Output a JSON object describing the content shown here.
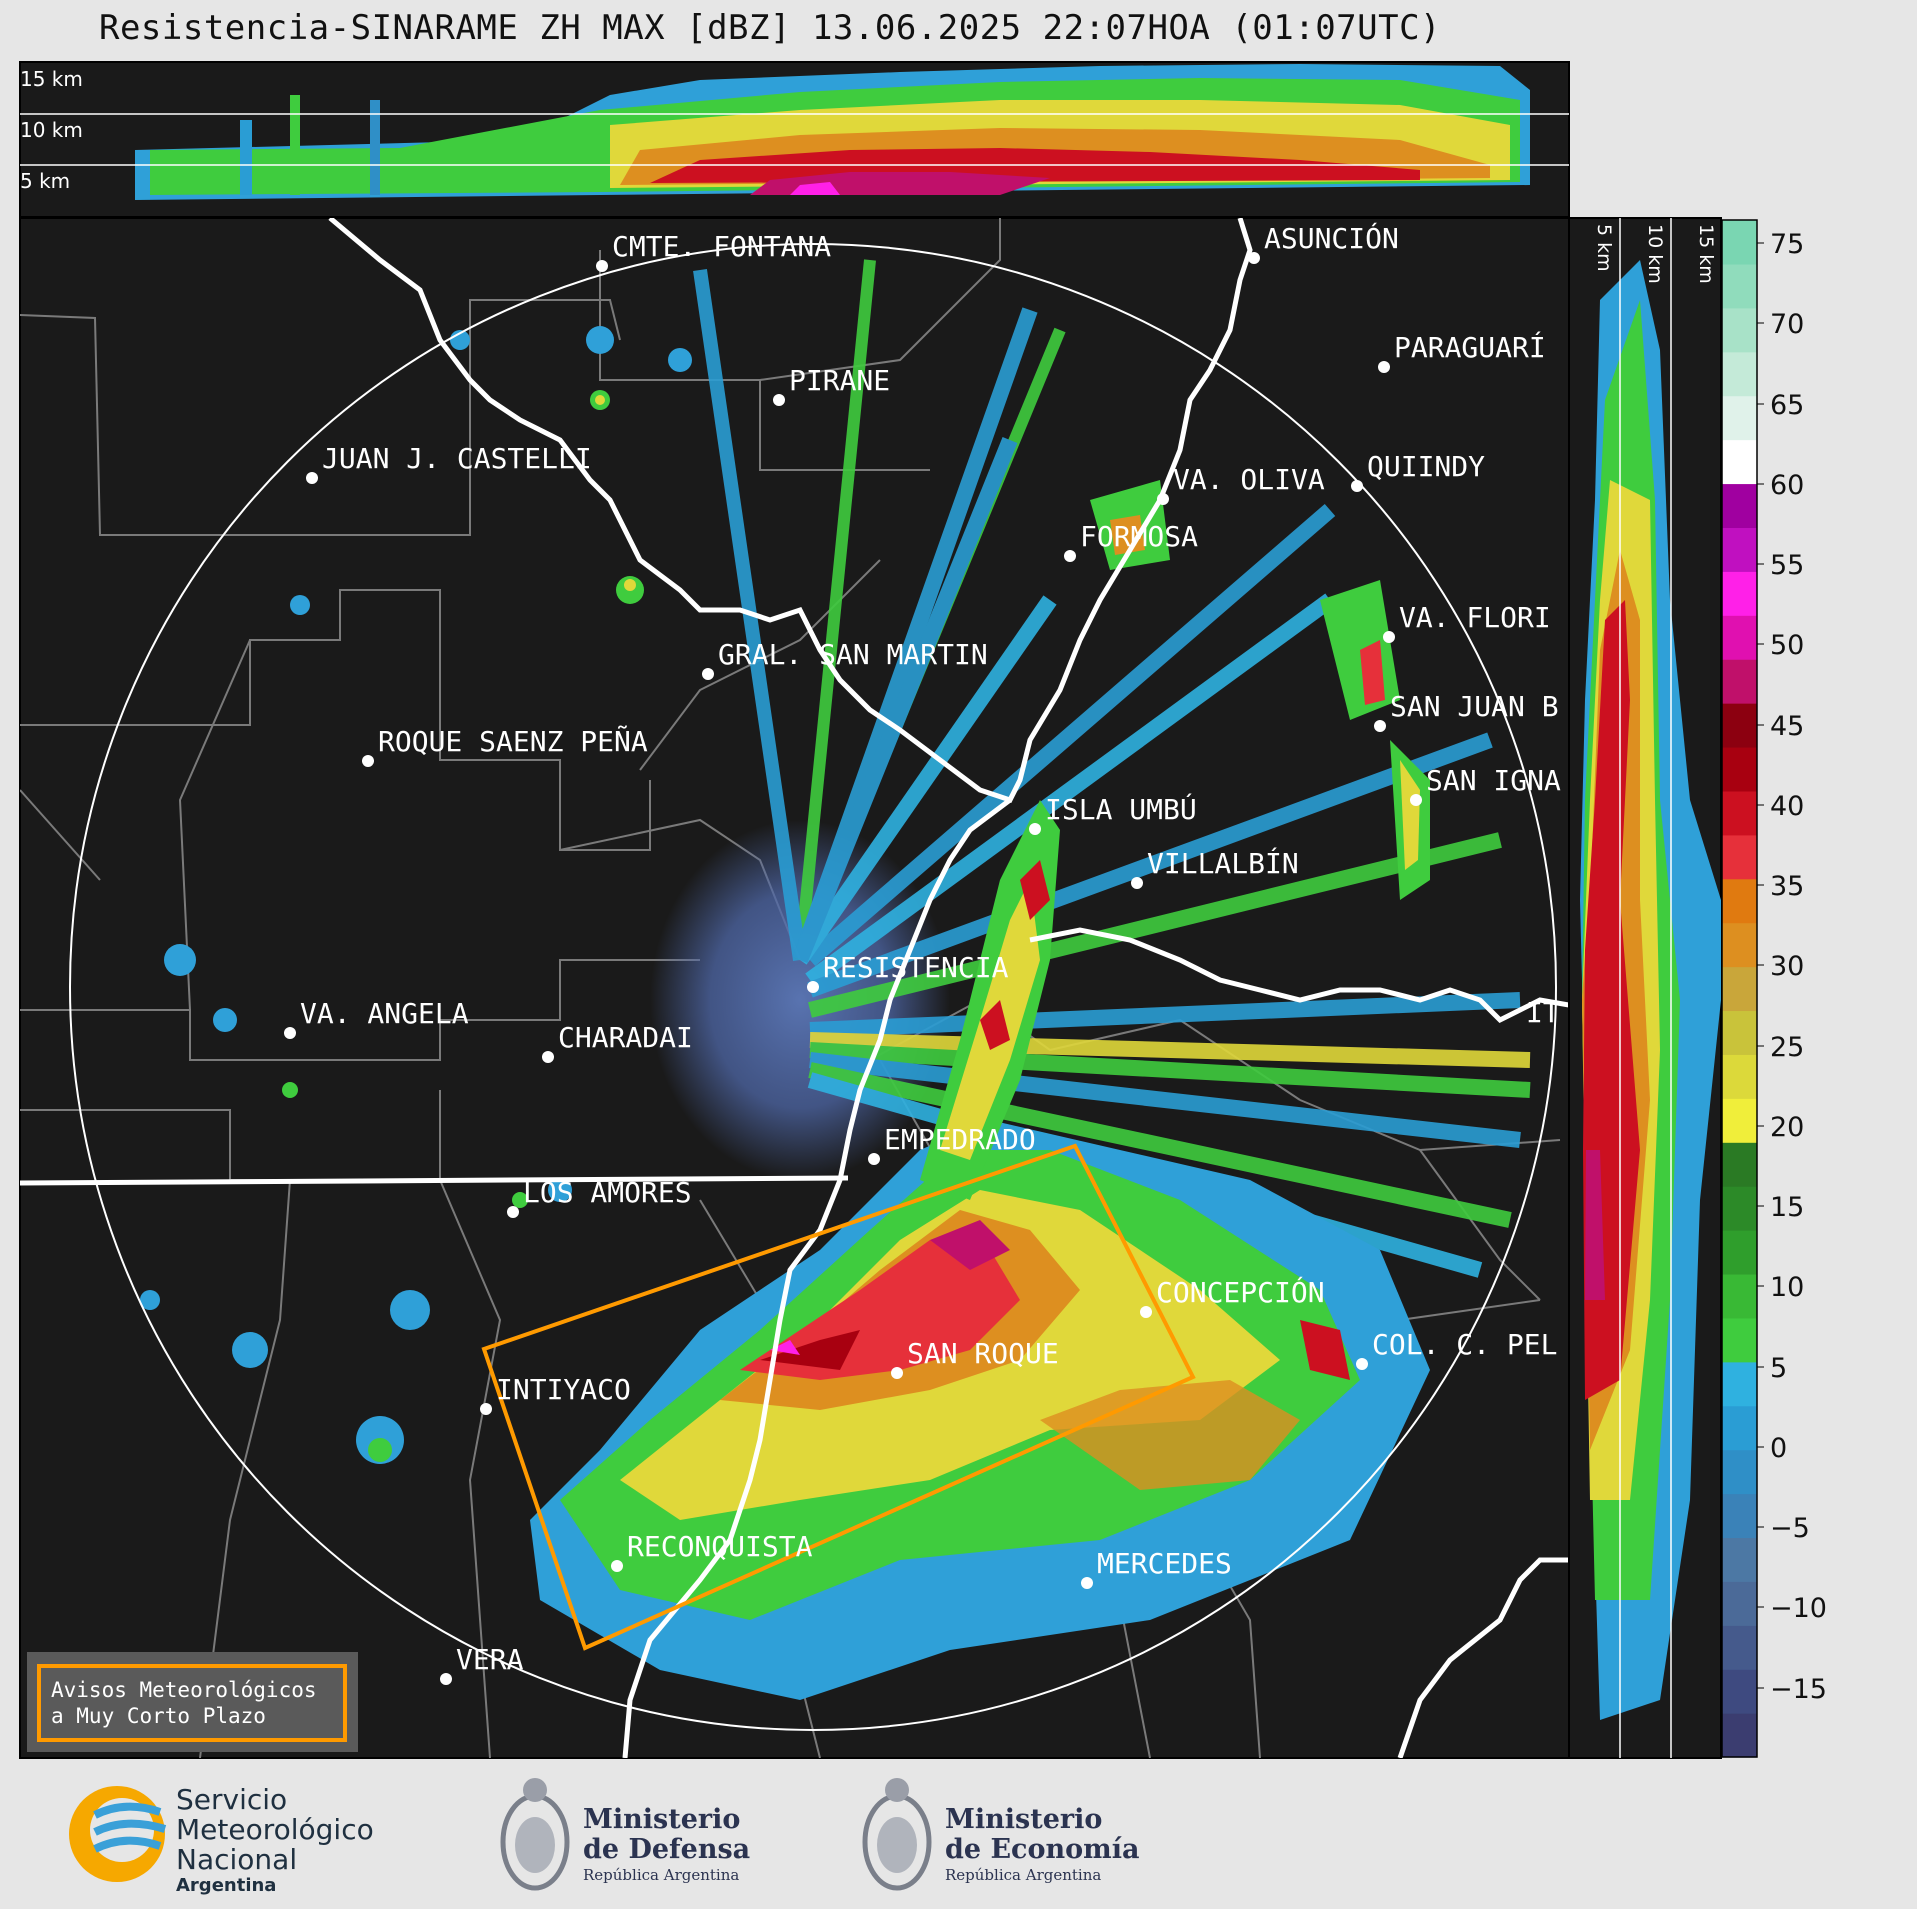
{
  "title": "Resistencia-SINARAME ZH MAX [dBZ] 13.06.2025 22:07HOA (01:07UTC)",
  "top_heights": [
    "15 km",
    "10 km",
    "5 km"
  ],
  "side_heights": [
    "5 km",
    "10 km",
    "15 km"
  ],
  "colorbar": {
    "ticks": [
      "75",
      "70",
      "65",
      "60",
      "55",
      "50",
      "45",
      "40",
      "35",
      "30",
      "25",
      "20",
      "15",
      "10",
      "5",
      "0",
      "−5",
      "−10",
      "−15"
    ],
    "colors": [
      "#3b3d70",
      "#3e4a80",
      "#455a8c",
      "#4b6a98",
      "#4c78a4",
      "#3a82b8",
      "#2f8fc7",
      "#2a9dd4",
      "#2fb1e0",
      "#3fcc3e",
      "#39b935",
      "#2f9e2c",
      "#2c8a28",
      "#2a7a24",
      "#f0ee3a",
      "#dcd93a",
      "#c9c33a",
      "#c9a63a",
      "#dd8f20",
      "#e07a10",
      "#e6303a",
      "#cc1020",
      "#a80010",
      "#8c0010",
      "#c0106a",
      "#e010b0",
      "#ff20e8",
      "#c010c0",
      "#a000a0",
      "#ffffff",
      "#e0f2ea",
      "#c4ead8",
      "#a8e2c8",
      "#90dcbc",
      "#7ad6b2"
    ]
  },
  "cities": [
    "CMTE. FONTANA",
    "ASUNCIÓN",
    "PARAGUARÍ",
    "PIRANE",
    "JUAN J. CASTELLI",
    "QUIINDY",
    "VA. OLIVA",
    "FORMOSA",
    "VA. FLORI",
    "GRAL. SAN MARTIN",
    "SAN JUAN B",
    "ROQUE SAENZ PEÑA",
    "SAN IGNA",
    "ISLA UMBÚ",
    "VILLALBÍN",
    "RESISTENCIA",
    "IT",
    "VA. ANGELA",
    "CHARADAI",
    "EMPEDRADO",
    "LOS AMORES",
    "CONCEPCIÓN",
    "SAN ROQUE",
    "COL. C. PEL",
    "INTIYACO",
    "RECONQUISTA",
    "MERCEDES",
    "VERA"
  ],
  "warning_box": {
    "line1": "Avisos Meteorológicos",
    "line2": "a Muy Corto Plazo"
  },
  "logos": {
    "smn": {
      "line1": "Servicio",
      "line2": "Meteorológico",
      "line3": "Nacional",
      "line4": "Argentina"
    },
    "defensa": {
      "line1": "Ministerio",
      "line2": "de Defensa",
      "line3": "República Argentina"
    },
    "economia": {
      "line1": "Ministerio",
      "line2": "de Economía",
      "line3": "República Argentina"
    }
  }
}
